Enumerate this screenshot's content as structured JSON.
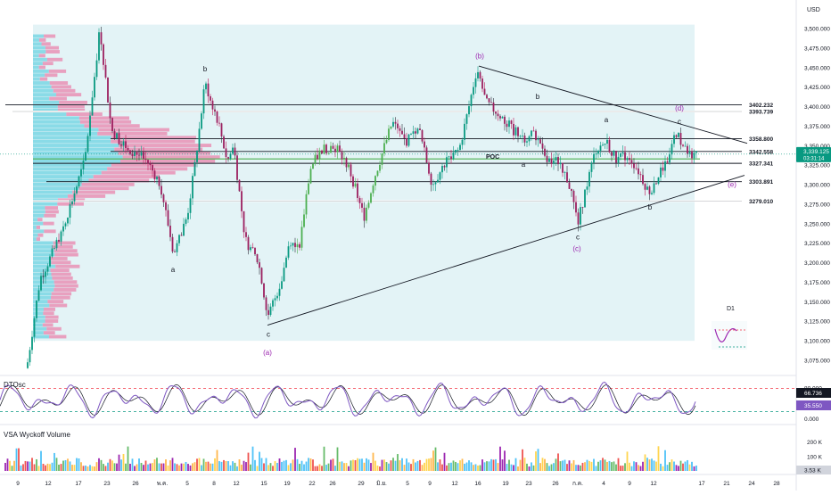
{
  "currency_label": "USD",
  "price_axis": {
    "min": 3062.5,
    "max": 3512.5,
    "ticks": [
      3500,
      3475,
      3450,
      3425,
      3400,
      3375,
      3350,
      3325,
      3300,
      3275,
      3250,
      3225,
      3200,
      3175,
      3150,
      3125,
      3100,
      3075
    ],
    "tick_labels": [
      "3,500.000",
      "3,475.000",
      "3,450.000",
      "3,425.000",
      "3,400.000",
      "3,375.000",
      "3,350.000",
      "3,325.000",
      "3,300.000",
      "3,275.000",
      "3,250.000",
      "3,225.000",
      "3,200.000",
      "3,175.000",
      "3,150.000",
      "3,125.000",
      "3,100.000",
      "3,075.000"
    ]
  },
  "current_price": {
    "label": "3,339.125",
    "countdown": "03:31:14",
    "value": 3339.125
  },
  "date_axis": {
    "labels": [
      "9",
      "12",
      "17",
      "23",
      "26",
      "พ.ค.",
      "5",
      "8",
      "12",
      "15",
      "19",
      "22",
      "26",
      "29",
      "มิ.ย.",
      "5",
      "9",
      "12",
      "16",
      "19",
      "23",
      "26",
      "ก.ค.",
      "4",
      "9",
      "12",
      "17",
      "21",
      "24",
      "28"
    ]
  },
  "levels": [
    {
      "value": 3402.232,
      "label": "3402.232",
      "color": "#131722"
    },
    {
      "value": 3393.739,
      "label": "3393.739",
      "color": "#131722"
    },
    {
      "value": 3358.8,
      "label": "3358.800",
      "color": "#131722"
    },
    {
      "value": 3342.558,
      "label": "3342.558",
      "color": "#131722"
    },
    {
      "value": 3327.341,
      "label": "3327.341",
      "color": "#131722"
    },
    {
      "value": 3303.891,
      "label": "3303.891",
      "color": "#131722"
    },
    {
      "value": 3279.01,
      "label": "3279.010",
      "color": "#131722"
    }
  ],
  "poc": {
    "label": "POC",
    "value": 3333
  },
  "wave_labels": {
    "b_outer": "(b)",
    "c_outer": "(c)",
    "d_outer": "(d)",
    "e_outer": "(e)",
    "a_outer": "(a)",
    "a1": "a",
    "b1": "b",
    "c1": "c",
    "b2": "b",
    "a2": "a",
    "a3": "a",
    "c2": "c",
    "b3": "b",
    "c3": "c"
  },
  "timeframe_badge": "D1",
  "oscillator": {
    "title": "DTOsc",
    "upper_label": "80.000",
    "value1": "66.736",
    "value2": "35.550",
    "zero_label": "0.000",
    "upper": 80,
    "lower": 20
  },
  "volume": {
    "title": "VSA Wyckoff Volume",
    "tick_200": "200 K",
    "tick_100": "100 K",
    "current": "3.53 K"
  },
  "colors": {
    "bull": "#089981",
    "bull_alt": "#4caf50",
    "bear": "#f23645",
    "candle_dark": "#2a2e39",
    "profile_cyan": "#7fd8e6",
    "profile_pink": "#e991b5",
    "zone_bg": "#e3f3f6",
    "poc_green": "#4caf50",
    "wave_purple": "#9c27b0",
    "osc_main": "#7e57c2",
    "osc_signal": "#131722",
    "osc_upper": "#f23645",
    "osc_lower": "#089981",
    "price_badge": "#089981"
  },
  "chart_data": {
    "type": "candlestick",
    "title": "",
    "xlabel": "",
    "ylabel": "USD",
    "ylim": [
      3062.5,
      3512.5
    ],
    "key_swings": [
      {
        "label": "b",
        "value": 3435
      },
      {
        "label": "a",
        "value": 3202
      },
      {
        "label": "c",
        "value": 3120
      },
      {
        "label": "(b)",
        "value": 3452
      },
      {
        "label": "(c)",
        "value": 3245
      },
      {
        "label": "b",
        "value": 3288
      },
      {
        "label": "c",
        "value": 3370
      }
    ],
    "horizontal_levels": [
      3402.232,
      3393.739,
      3358.8,
      3342.558,
      3327.341,
      3303.891,
      3279.01
    ],
    "triangle": {
      "upper": {
        "start": 3452,
        "end": 3353
      },
      "lower": {
        "start": 3120,
        "end": 3312
      }
    },
    "last_price": 3339.125
  }
}
